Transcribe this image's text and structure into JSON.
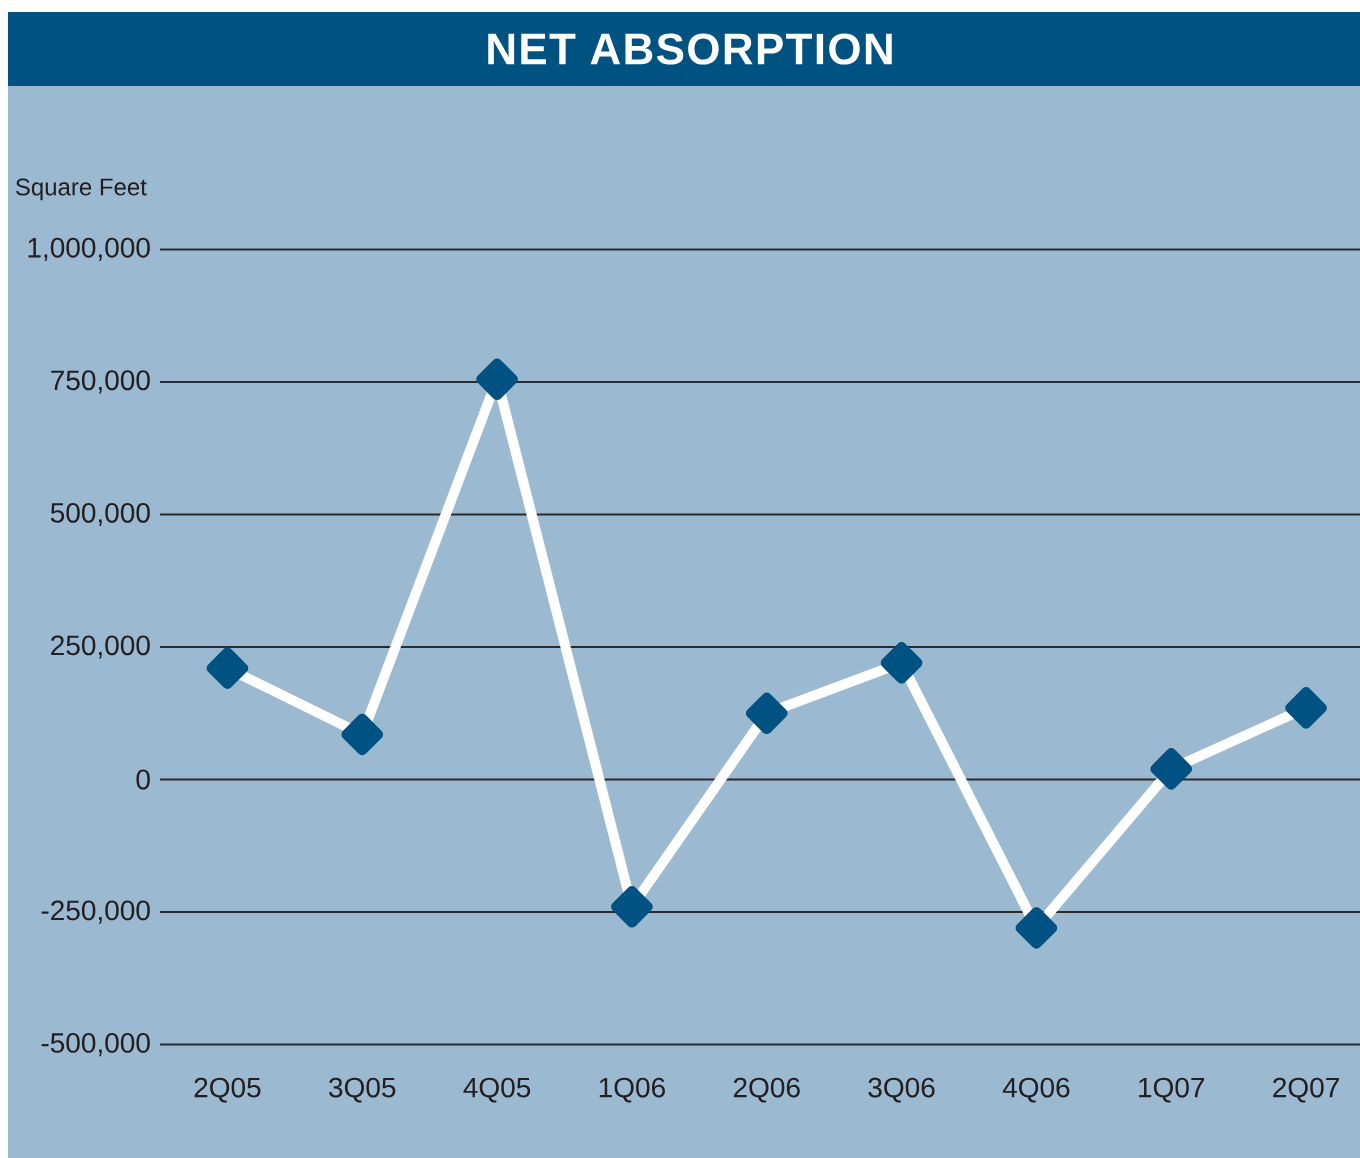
{
  "chart_data": {
    "type": "line",
    "title": "NET ABSORPTION",
    "ylabel": "Square Feet",
    "categories": [
      "2Q05",
      "3Q05",
      "4Q05",
      "1Q06",
      "2Q06",
      "3Q06",
      "4Q06",
      "1Q07",
      "2Q07"
    ],
    "values": [
      210000,
      85000,
      755000,
      -240000,
      125000,
      220000,
      -280000,
      20000,
      135000
    ],
    "color": "#ffffff",
    "marker": "diamond",
    "line_style": "solid",
    "grid": "y",
    "ylim": [
      -500000,
      1000000
    ],
    "yticks": [
      {
        "value": -500000,
        "label": "-500,000"
      },
      {
        "value": -250000,
        "label": "-250,000"
      },
      0,
      {
        "value": 250000,
        "label": "250,000"
      },
      {
        "value": 500000,
        "label": "500,000"
      },
      {
        "value": 750000,
        "label": "750,000"
      },
      {
        "value": 1000000,
        "label": "1,000,000"
      }
    ]
  }
}
